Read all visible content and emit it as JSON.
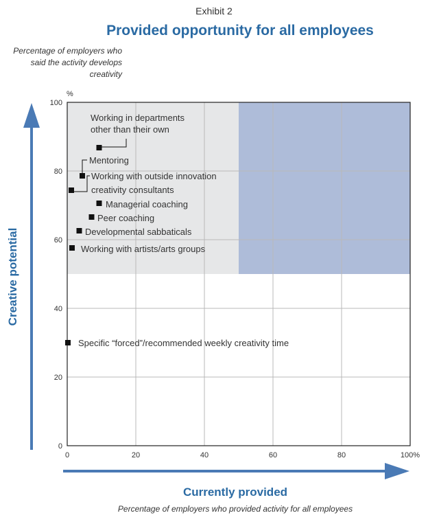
{
  "exhibit": "Exhibit 2",
  "title": "Provided opportunity for all employees",
  "y_note": "Percentage of employers who said the activity develops creativity",
  "x_note": "Percentage of employers who provided activity for all employees",
  "y_axis_title": "Creative potential",
  "x_axis_title": "Currently provided",
  "colors": {
    "accent": "#4a7ab5",
    "title": "#2a6aa3",
    "light_region": "#e6e7e8",
    "blue_region": "#aebcd9"
  },
  "chart_data": {
    "type": "scatter",
    "xlim": [
      0,
      100
    ],
    "ylim": [
      0,
      100
    ],
    "x_ticks": [
      "0",
      "20",
      "40",
      "60",
      "80",
      "100%"
    ],
    "y_ticks": [
      "0",
      "20",
      "40",
      "60",
      "80",
      "100"
    ],
    "y_unit": "%",
    "grid": true,
    "regions": [
      {
        "x": [
          0,
          50
        ],
        "y": [
          50,
          100
        ],
        "color": "#e6e7e8"
      },
      {
        "x": [
          50,
          100
        ],
        "y": [
          50,
          100
        ],
        "color": "#aebcd9"
      }
    ],
    "points": [
      {
        "label": [
          "Working in departments",
          "other than their own"
        ],
        "x": 9.3,
        "y": 86.8
      },
      {
        "label": [
          "Mentoring"
        ],
        "x": 4.4,
        "y": 78.6
      },
      {
        "label": [
          "Working with outside innovation",
          "creativity consultants"
        ],
        "x": 1.2,
        "y": 74.4
      },
      {
        "label": [
          "Managerial coaching"
        ],
        "x": 9.3,
        "y": 70.6
      },
      {
        "label": [
          "Peer coaching"
        ],
        "x": 7.1,
        "y": 66.6
      },
      {
        "label": [
          "Developmental sabbaticals"
        ],
        "x": 3.5,
        "y": 62.6
      },
      {
        "label": [
          "Working with artists/arts groups"
        ],
        "x": 1.4,
        "y": 57.6
      },
      {
        "label": [
          "Specific “forced”/recommended weekly creativity time"
        ],
        "x": 0.2,
        "y": 30.0
      }
    ]
  }
}
